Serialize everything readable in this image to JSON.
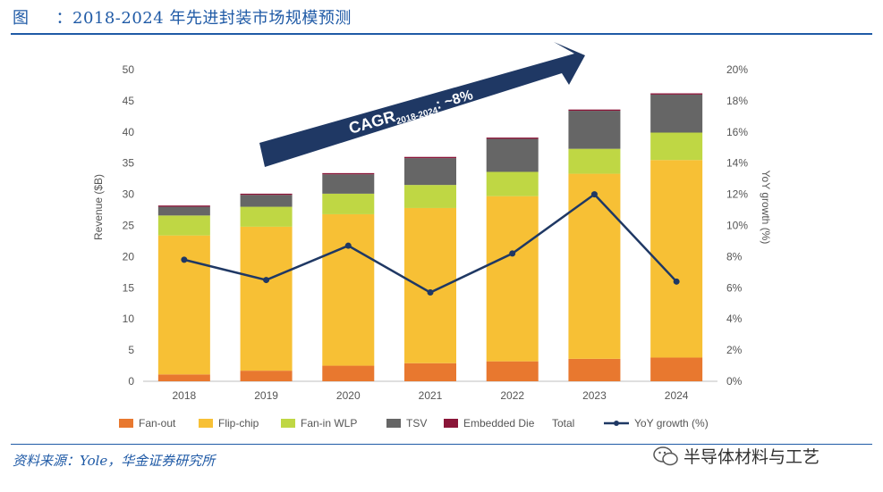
{
  "header": {
    "fig_label": "图",
    "title": "：2018-2024 年先进封装市场规模预测"
  },
  "footer": {
    "source": "资料来源：Yole，华金证券研究所",
    "watermark": "半导体材料与工艺"
  },
  "annotation": {
    "cagr_main": "CAGR",
    "cagr_sub": "2018-2024",
    "cagr_tail": ": ~8%"
  },
  "colors": {
    "fan_out": "#e8782f",
    "flip_chip": "#f7c035",
    "fan_in_wlp": "#bfd744",
    "tsv": "#666666",
    "embedded_die": "#8a1538",
    "yoy_line": "#1f3864",
    "arrow": "#1f3864",
    "accent": "#1f5aa6"
  },
  "chart_data": {
    "type": "bar",
    "stacked": true,
    "categories": [
      "2018",
      "2019",
      "2020",
      "2021",
      "2022",
      "2023",
      "2024"
    ],
    "series": [
      {
        "name": "Fan-out",
        "key": "fan_out",
        "values": [
          1.1,
          1.7,
          2.5,
          2.9,
          3.2,
          3.6,
          3.8
        ]
      },
      {
        "name": "Flip-chip",
        "key": "flip_chip",
        "values": [
          22.3,
          23.1,
          24.3,
          24.9,
          26.5,
          29.7,
          31.7
        ]
      },
      {
        "name": "Fan-in WLP",
        "key": "fan_in_wlp",
        "values": [
          3.2,
          3.2,
          3.3,
          3.7,
          3.9,
          4.0,
          4.4
        ]
      },
      {
        "name": "TSV",
        "key": "tsv",
        "values": [
          1.4,
          1.9,
          3.1,
          4.3,
          5.3,
          6.1,
          6.1
        ]
      },
      {
        "name": "Embedded Die",
        "key": "embedded_die",
        "values": [
          0.2,
          0.2,
          0.2,
          0.2,
          0.2,
          0.2,
          0.2
        ]
      }
    ],
    "total_label": "Total",
    "line_series": {
      "name": "YoY growth (%)",
      "axis": "right",
      "values": [
        7.8,
        6.5,
        8.7,
        5.7,
        8.2,
        12.0,
        6.4
      ]
    },
    "ylabel": "Revenue ($B)",
    "y2label": "YoY growth (%)",
    "ylim": [
      0,
      50
    ],
    "yticks": [
      "0",
      "5",
      "10",
      "15",
      "20",
      "25",
      "30",
      "35",
      "40",
      "45",
      "50"
    ],
    "y2lim": [
      0,
      20
    ],
    "y2ticks": [
      "0%",
      "2%",
      "4%",
      "6%",
      "8%",
      "10%",
      "12%",
      "14%",
      "16%",
      "18%",
      "20%"
    ],
    "legend_position": "bottom"
  }
}
